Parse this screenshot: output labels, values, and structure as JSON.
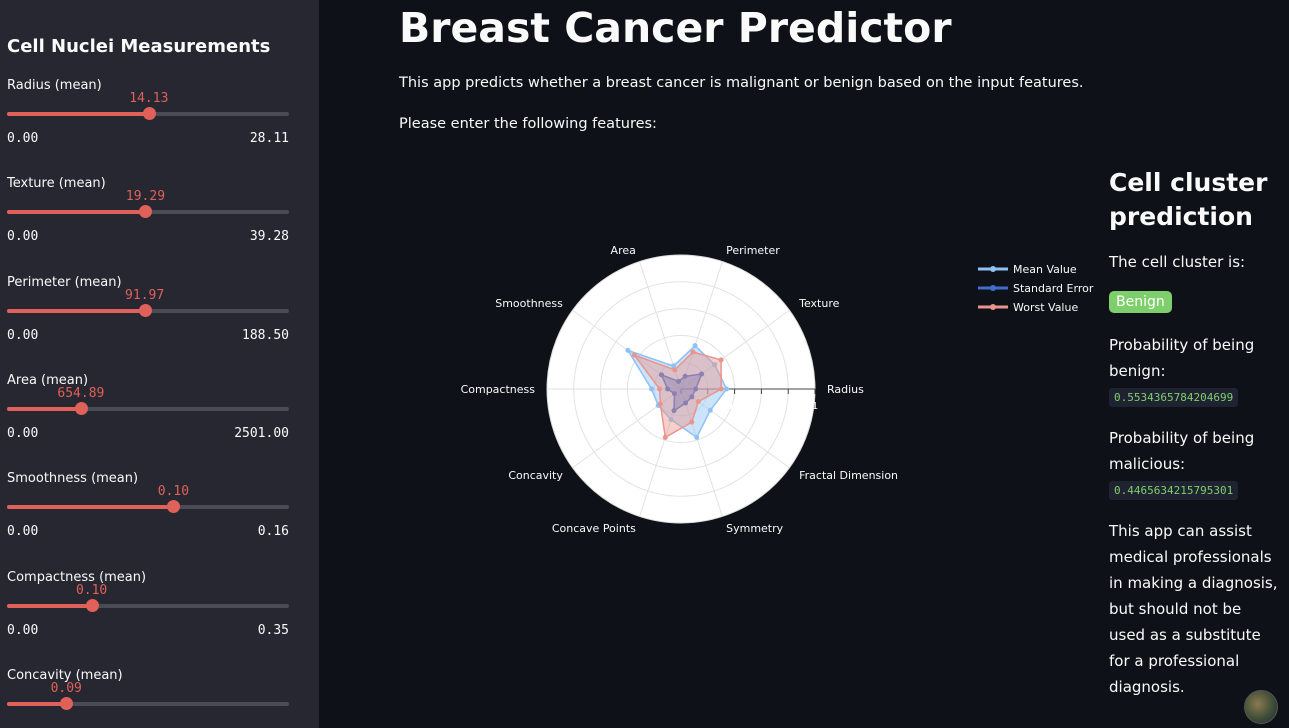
{
  "sidebar": {
    "title": "Cell Nuclei Measurements",
    "sliders": [
      {
        "label": "Radius (mean)",
        "value": "14.13",
        "min": "0.00",
        "max": "28.11",
        "fraction": 0.503
      },
      {
        "label": "Texture (mean)",
        "value": "19.29",
        "min": "0.00",
        "max": "39.28",
        "fraction": 0.491
      },
      {
        "label": "Perimeter (mean)",
        "value": "91.97",
        "min": "0.00",
        "max": "188.50",
        "fraction": 0.488
      },
      {
        "label": "Area (mean)",
        "value": "654.89",
        "min": "0.00",
        "max": "2501.00",
        "fraction": 0.262
      },
      {
        "label": "Smoothness (mean)",
        "value": "0.10",
        "min": "0.00",
        "max": "0.16",
        "fraction": 0.59
      },
      {
        "label": "Compactness (mean)",
        "value": "0.10",
        "min": "0.00",
        "max": "0.35",
        "fraction": 0.3
      },
      {
        "label": "Concavity (mean)",
        "value": "0.09",
        "min": "",
        "max": "",
        "fraction": 0.21
      }
    ]
  },
  "main": {
    "title": "Breast Cancer Predictor",
    "description": "This app predicts whether a breast cancer is malignant or benign based on the input features.",
    "instruction": "Please enter the following features:"
  },
  "prediction": {
    "heading": "Cell cluster prediction",
    "cluster_label": "The cell cluster is:",
    "result": "Benign",
    "benign_label": "Probability of being benign:",
    "benign_value": "0.5534365784204699",
    "malicious_label": "Probability of being malicious:",
    "malicious_value": "0.4465634215795301",
    "disclaimer": "This app can assist medical professionals in making a diagnosis, but should not be used as a substitute for a professional diagnosis."
  },
  "chart_data": {
    "type": "radar",
    "categories": [
      "Radius",
      "Texture",
      "Perimeter",
      "Area",
      "Smoothness",
      "Compactness",
      "Concavity",
      "Concave Points",
      "Symmetry",
      "Fractal Dimension"
    ],
    "radial_ticks": [
      "0",
      "0.2",
      "0.4",
      "0.6",
      "0.8",
      "1"
    ],
    "radial_range": [
      0,
      1
    ],
    "legend_position": "top-right",
    "series": [
      {
        "name": "Mean Value",
        "color": "#8fc1f5",
        "values": [
          0.34,
          0.31,
          0.34,
          0.18,
          0.49,
          0.22,
          0.21,
          0.24,
          0.38,
          0.27
        ]
      },
      {
        "name": "Standard Error",
        "color": "#3f6fcc",
        "values": [
          0.11,
          0.19,
          0.1,
          0.06,
          0.18,
          0.1,
          0.06,
          0.17,
          0.11,
          0.1
        ]
      },
      {
        "name": "Worst Value",
        "color": "#e8958e",
        "values": [
          0.3,
          0.37,
          0.29,
          0.15,
          0.43,
          0.16,
          0.19,
          0.38,
          0.26,
          0.16
        ]
      }
    ]
  }
}
